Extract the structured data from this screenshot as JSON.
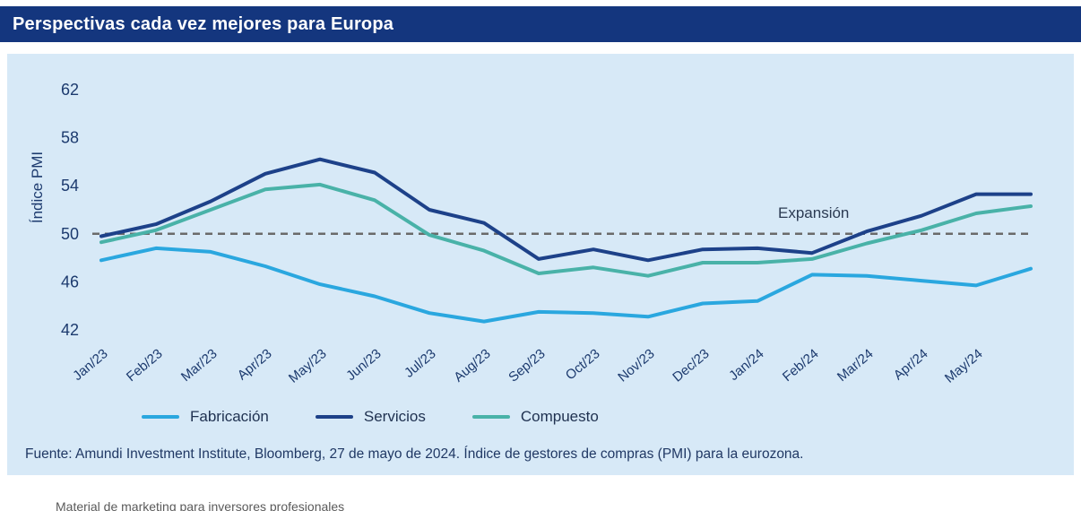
{
  "header": {
    "title": "Perspectivas cada vez mejores para Europa"
  },
  "chart_data": {
    "type": "line",
    "ylabel": "Índice PMI",
    "xlabel": "",
    "ylim": [
      42,
      62
    ],
    "yticks": [
      62,
      58,
      54,
      50,
      46,
      42
    ],
    "grid": false,
    "legend_position": "bottom",
    "categories": [
      "Jan/23",
      "Feb/23",
      "Mar/23",
      "Apr/23",
      "May/23",
      "Jun/23",
      "Jul/23",
      "Aug/23",
      "Sep/23",
      "Oct/23",
      "Nov/23",
      "Dec/23",
      "Jan/24",
      "Feb/24",
      "Mar/24",
      "Apr/24",
      "May/24",
      ""
    ],
    "series": [
      {
        "name": "Fabricación",
        "color": "#2aa7df",
        "values": [
          47.8,
          48.8,
          48.5,
          47.3,
          45.8,
          44.8,
          43.4,
          42.7,
          43.5,
          43.4,
          43.1,
          44.2,
          44.4,
          46.6,
          46.5,
          46.1,
          45.7,
          47.1
        ]
      },
      {
        "name": "Servicios",
        "color": "#1d4189",
        "values": [
          49.8,
          50.8,
          52.7,
          55.0,
          56.2,
          55.1,
          52.0,
          50.9,
          47.9,
          48.7,
          47.8,
          48.7,
          48.8,
          48.4,
          50.2,
          51.5,
          53.3,
          53.3
        ]
      },
      {
        "name": "Compuesto",
        "color": "#49b2a8",
        "values": [
          49.3,
          50.3,
          52.0,
          53.7,
          54.1,
          52.8,
          49.9,
          48.6,
          46.7,
          47.2,
          46.5,
          47.6,
          47.6,
          47.9,
          49.2,
          50.3,
          51.7,
          52.3
        ]
      }
    ],
    "reference_line": {
      "value": 50,
      "label": "Expansión",
      "style": "dashed",
      "color": "#6a6a6a"
    }
  },
  "source": {
    "text": "Fuente: Amundi Investment Institute, Bloomberg, 27 de mayo de 2024. Índice de gestores de compras (PMI) para la eurozona."
  },
  "footer_note": {
    "text": "Material de marketing para inversores profesionales"
  },
  "colors": {
    "header_bg": "#14367e",
    "panel_bg": "#d7e9f7",
    "axis_text": "#1c3a6e"
  }
}
